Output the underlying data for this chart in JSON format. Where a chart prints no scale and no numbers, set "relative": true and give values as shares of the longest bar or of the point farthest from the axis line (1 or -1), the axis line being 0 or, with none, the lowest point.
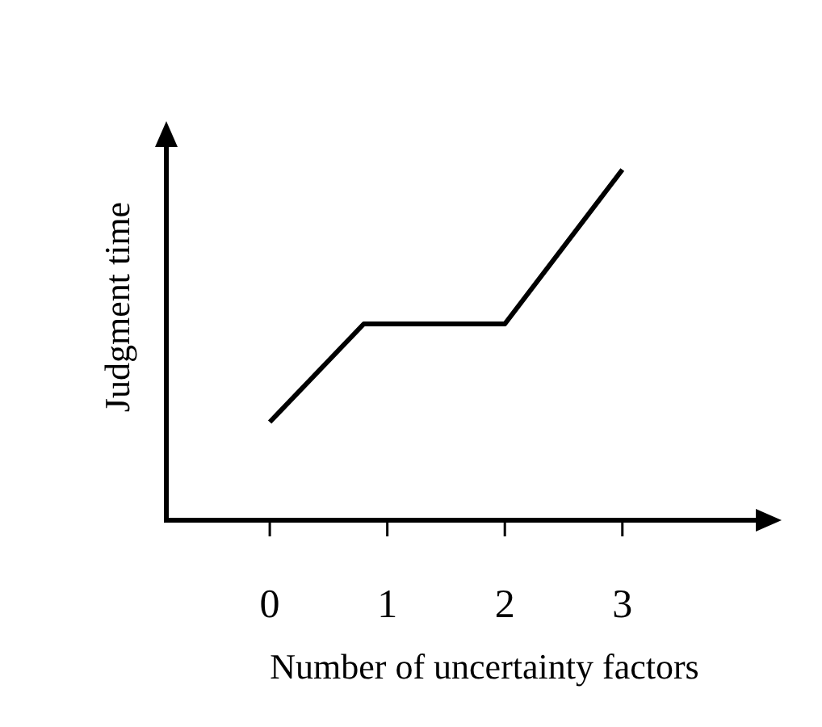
{
  "chart_data": {
    "type": "line",
    "xlabel": "Number of uncertainty factors",
    "ylabel": "Judgment time",
    "relative": true,
    "x": [
      0,
      0.8,
      2,
      3
    ],
    "xlim": [
      -0.88,
      4.3
    ],
    "xticks": [
      0,
      1,
      2,
      3
    ],
    "grid": false,
    "marker": "none",
    "line_style": "solid",
    "series": [
      {
        "color": "#000000",
        "values": [
          0.28,
          0.56,
          0.56,
          1
        ]
      }
    ]
  }
}
